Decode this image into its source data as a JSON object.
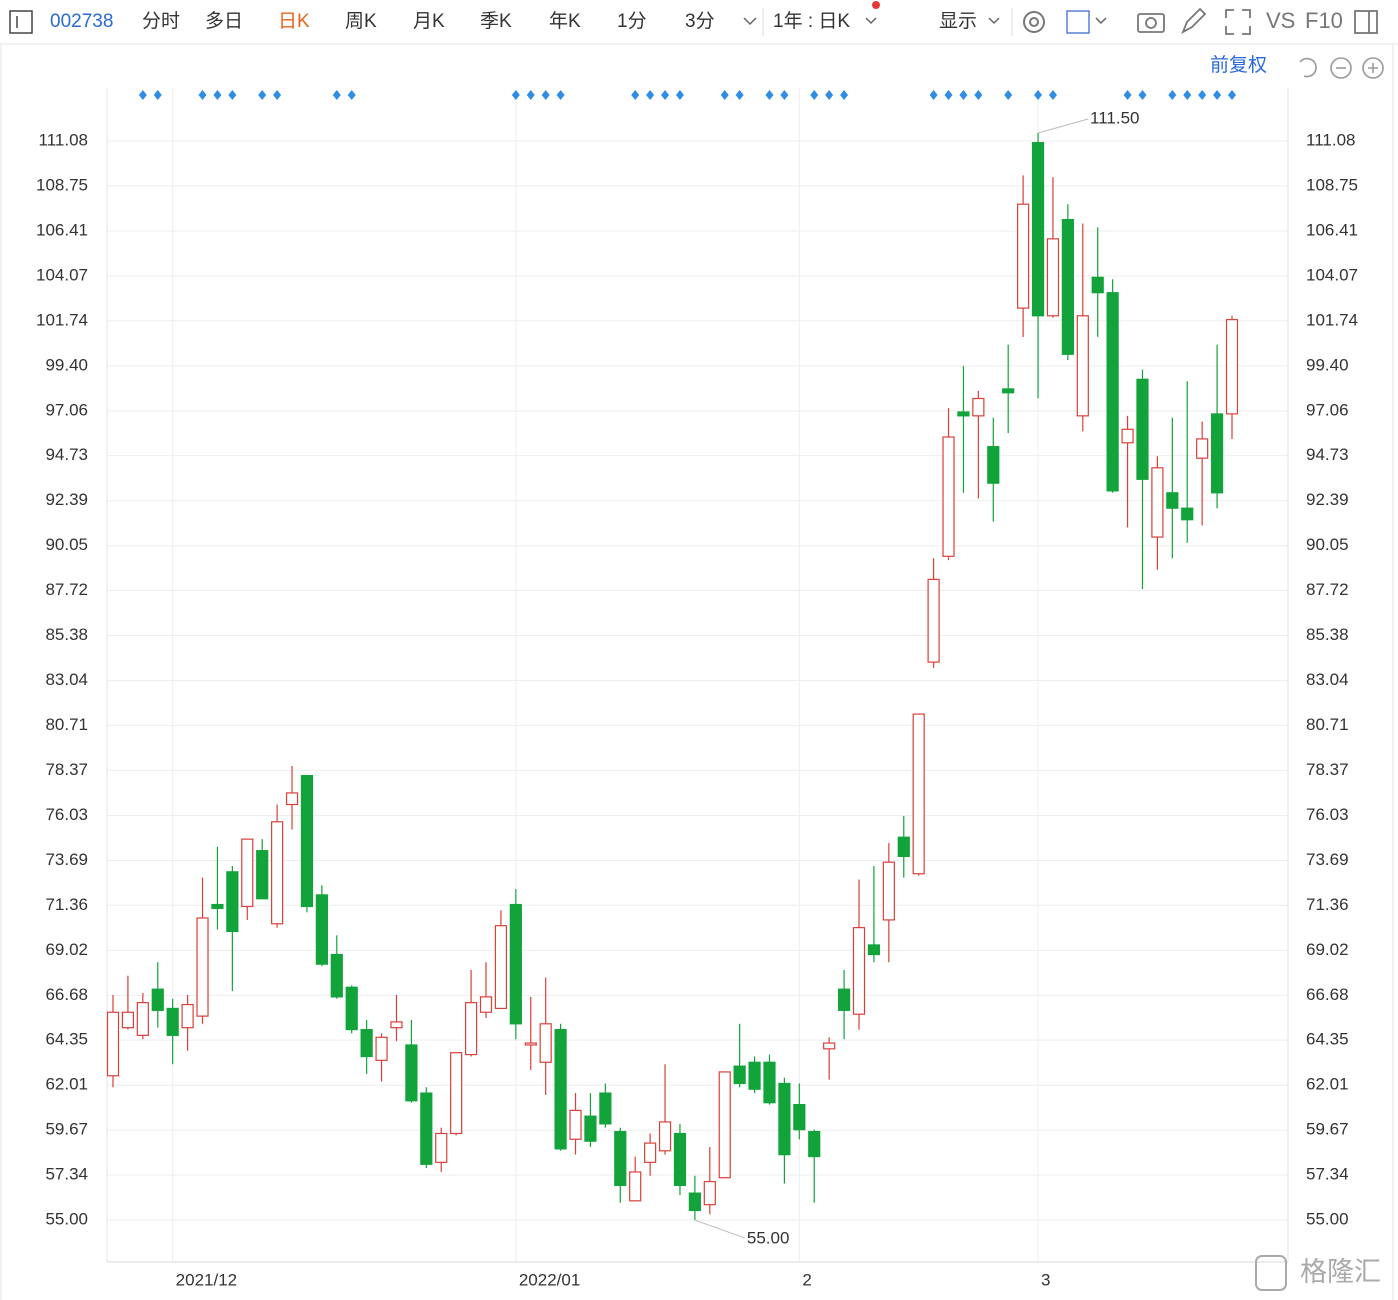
{
  "toolbar": {
    "code": "002738",
    "tabs": [
      "分时",
      "多日",
      "日K",
      "周K",
      "月K",
      "季K",
      "年K",
      "1分",
      "3分"
    ],
    "range": "1年 : 日K",
    "display": "显示",
    "vs": "VS",
    "f10": "F10"
  },
  "adjust": "前复权",
  "watermark": "格隆汇",
  "chart_data": {
    "type": "candlestick",
    "up_color": "#d9403a",
    "down_color": "#12a33b",
    "categories": [
      null,
      null,
      null,
      null,
      "2021/12",
      null,
      null,
      null,
      null,
      null,
      null,
      null,
      null,
      null,
      null,
      null,
      null,
      null,
      null,
      null,
      null,
      null,
      null,
      null,
      null,
      null,
      null,
      "2022/01",
      null,
      null,
      null,
      null,
      null,
      null,
      null,
      null,
      null,
      null,
      null,
      null,
      null,
      null,
      null,
      null,
      null,
      null,
      "2",
      null,
      null,
      null,
      null,
      null,
      null,
      null,
      null,
      null,
      null,
      null,
      null,
      null,
      null,
      null,
      "3",
      null,
      null,
      null,
      null,
      null,
      null,
      null,
      null,
      null,
      null,
      null,
      null,
      null
    ],
    "open": [
      62.5,
      65.0,
      64.6,
      67.0,
      66.0,
      65.0,
      65.6,
      71.4,
      73.1,
      71.3,
      74.2,
      70.4,
      76.6,
      78.1,
      71.9,
      68.8,
      67.1,
      64.9,
      63.3,
      65.0,
      64.1,
      61.6,
      58.0,
      59.5,
      63.6,
      65.8,
      66.0,
      71.4,
      64.1,
      63.2,
      64.9,
      59.2,
      60.4,
      61.6,
      59.6,
      56.0,
      58.0,
      58.6,
      59.5,
      56.4,
      55.8,
      57.2,
      63.0,
      63.2,
      63.2,
      62.1,
      61.0,
      59.6,
      63.9,
      67.0,
      65.7,
      69.3,
      70.6,
      74.9,
      73.0,
      84.0,
      89.5,
      97.0,
      96.8,
      95.2,
      98.2,
      102.4,
      111.0,
      102.0,
      107.0,
      96.8,
      104.0,
      103.2,
      95.4,
      98.7,
      90.5,
      92.8,
      92.0,
      94.6,
      96.9,
      96.9
    ],
    "high": [
      66.7,
      67.7,
      66.8,
      68.4,
      66.5,
      66.7,
      72.8,
      74.4,
      73.4,
      74.8,
      74.8,
      76.6,
      78.6,
      78.1,
      72.4,
      69.8,
      67.2,
      65.4,
      64.7,
      66.7,
      65.4,
      61.9,
      59.8,
      63.7,
      68.0,
      68.4,
      71.1,
      72.2,
      66.6,
      67.6,
      65.2,
      61.6,
      61.6,
      62.1,
      59.8,
      58.3,
      59.5,
      63.1,
      60.0,
      57.3,
      58.8,
      62.7,
      65.2,
      63.5,
      63.6,
      62.4,
      62.1,
      59.7,
      64.5,
      68.0,
      72.7,
      73.4,
      74.6,
      76.0,
      81.3,
      89.4,
      97.2,
      99.4,
      98.1,
      96.7,
      100.5,
      109.3,
      111.5,
      109.2,
      107.8,
      106.8,
      106.6,
      103.9,
      96.8,
      99.2,
      94.7,
      96.7,
      98.6,
      96.5,
      100.5,
      102.0
    ],
    "low": [
      61.9,
      64.9,
      64.4,
      65.0,
      63.1,
      63.8,
      65.2,
      70.1,
      66.9,
      70.6,
      71.7,
      70.2,
      75.3,
      71.0,
      68.2,
      66.5,
      64.7,
      62.6,
      62.2,
      64.3,
      61.1,
      57.7,
      57.5,
      59.4,
      63.5,
      65.5,
      66.0,
      64.4,
      62.8,
      61.5,
      58.6,
      58.4,
      58.8,
      59.8,
      55.9,
      56.0,
      57.3,
      58.4,
      56.3,
      55.0,
      55.3,
      57.2,
      61.9,
      61.6,
      61.0,
      56.9,
      59.2,
      55.9,
      62.3,
      64.4,
      64.9,
      68.4,
      68.4,
      72.8,
      72.9,
      83.7,
      89.3,
      92.8,
      92.5,
      91.3,
      95.9,
      100.9,
      97.7,
      101.9,
      99.7,
      96.0,
      100.9,
      92.8,
      91.0,
      87.8,
      88.8,
      89.4,
      90.2,
      91.1,
      92.0,
      95.6
    ],
    "close": [
      65.8,
      65.8,
      66.3,
      65.9,
      64.6,
      66.2,
      70.7,
      71.2,
      70.0,
      74.8,
      71.7,
      75.7,
      77.2,
      71.3,
      68.3,
      66.6,
      64.9,
      63.5,
      64.5,
      65.3,
      61.2,
      57.9,
      59.5,
      63.7,
      66.3,
      66.6,
      70.3,
      65.2,
      64.2,
      65.2,
      58.7,
      60.7,
      59.1,
      60.0,
      56.8,
      57.5,
      59.0,
      60.1,
      56.8,
      55.5,
      57.0,
      62.7,
      62.1,
      61.8,
      61.1,
      58.4,
      59.7,
      58.3,
      64.2,
      65.9,
      70.2,
      68.8,
      73.6,
      73.9,
      81.3,
      88.3,
      95.7,
      96.8,
      97.7,
      93.3,
      98.0,
      107.8,
      102.0,
      106.0,
      100.0,
      102.0,
      103.2,
      92.9,
      96.1,
      93.5,
      94.1,
      92.0,
      91.4,
      95.6,
      92.8,
      101.8
    ],
    "annotations": [
      {
        "text": "111.50"
      },
      {
        "text": "55.00"
      }
    ],
    "ylim": [
      52.82,
      113.84
    ],
    "yticks": [
      {
        "value": 55,
        "label": "55.00"
      },
      57.34,
      59.67,
      62.01,
      64.35,
      66.68,
      69.02,
      71.36,
      73.69,
      76.03,
      78.37,
      80.71,
      83.04,
      85.38,
      87.72,
      90.05,
      92.39,
      94.73,
      97.06,
      {
        "value": 99.4,
        "label": "99.40"
      },
      101.74,
      104.07,
      106.41,
      108.75,
      111.08
    ],
    "grid": true
  }
}
